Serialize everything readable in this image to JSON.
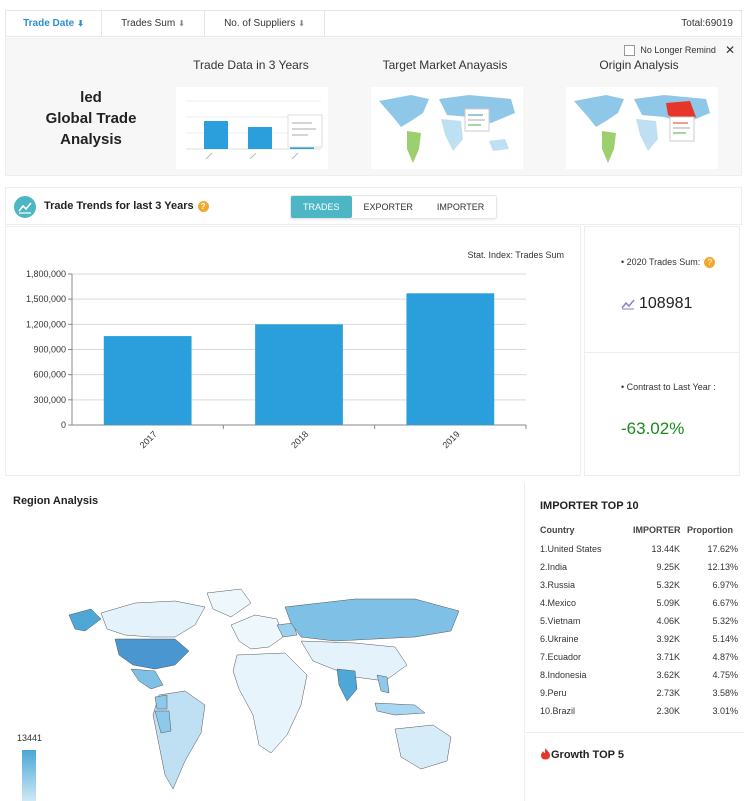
{
  "sortbar": {
    "items": [
      {
        "label": "Trade Date",
        "arrow": "⬇"
      },
      {
        "label": "Trades Sum",
        "arrow": "⬇"
      },
      {
        "label": "No. of Suppliers",
        "arrow": "⬇"
      }
    ],
    "total": "Total:69019"
  },
  "banner": {
    "product": "led",
    "title_line2": "Global Trade",
    "title_line3": "Analysis",
    "thumbs": [
      "Trade Data in 3 Years",
      "Target Market Anayasis",
      "Origin Analysis"
    ],
    "remind_label": "No Longer Remind",
    "close_label": "✕"
  },
  "trends": {
    "title": "Trade Trends for last 3 Years",
    "help": "?",
    "tabs": [
      "TRADES",
      "EXPORTER",
      "IMPORTER"
    ],
    "active_tab": 0,
    "stat_index": "Stat. Index: Trades Sum",
    "sum_label": "• 2020 Trades Sum:",
    "sum_value": "108981",
    "contrast_label": "• Contrast to Last Year :",
    "contrast_value": "-63.02%",
    "accent": "#4db6c4",
    "bar_color": "#2a9fdc",
    "positive_color": "#1a8a1a"
  },
  "chart_data": {
    "type": "bar",
    "categories": [
      "2017",
      "2018",
      "2019"
    ],
    "values": [
      1060000,
      1200000,
      1570000
    ],
    "ylim": [
      0,
      1800000
    ],
    "yticks": [
      "0",
      "300,000",
      "600,000",
      "900,000",
      "1,200,000",
      "1,500,000",
      "1,800,000"
    ],
    "xlabel": "",
    "ylabel": "",
    "grid": true
  },
  "region": {
    "title": "Region Analysis",
    "legend_max": "13441"
  },
  "importers": {
    "title": "IMPORTER TOP 10",
    "headers": [
      "Country",
      "IMPORTER",
      "Proportion"
    ],
    "rows": [
      {
        "country": "1.United States",
        "value": "13.44K",
        "prop": "17.62%"
      },
      {
        "country": "2.India",
        "value": "9.25K",
        "prop": "12.13%"
      },
      {
        "country": "3.Russia",
        "value": "5.32K",
        "prop": "6.97%"
      },
      {
        "country": "4.Mexico",
        "value": "5.09K",
        "prop": "6.67%"
      },
      {
        "country": "5.Vietnam",
        "value": "4.06K",
        "prop": "5.32%"
      },
      {
        "country": "6.Ukraine",
        "value": "3.92K",
        "prop": "5.14%"
      },
      {
        "country": "7.Ecuador",
        "value": "3.71K",
        "prop": "4.87%"
      },
      {
        "country": "8.Indonesia",
        "value": "3.62K",
        "prop": "4.75%"
      },
      {
        "country": "9.Peru",
        "value": "2.73K",
        "prop": "3.58%"
      },
      {
        "country": "10.Brazil",
        "value": "2.30K",
        "prop": "3.01%"
      }
    ]
  },
  "growth": {
    "title": "Growth TOP 5"
  }
}
